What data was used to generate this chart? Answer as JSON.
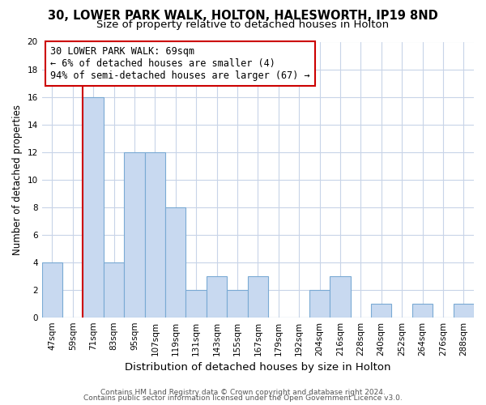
{
  "title": "30, LOWER PARK WALK, HOLTON, HALESWORTH, IP19 8ND",
  "subtitle": "Size of property relative to detached houses in Holton",
  "xlabel": "Distribution of detached houses by size in Holton",
  "ylabel": "Number of detached properties",
  "bar_labels": [
    "47sqm",
    "59sqm",
    "71sqm",
    "83sqm",
    "95sqm",
    "107sqm",
    "119sqm",
    "131sqm",
    "143sqm",
    "155sqm",
    "167sqm",
    "179sqm",
    "192sqm",
    "204sqm",
    "216sqm",
    "228sqm",
    "240sqm",
    "252sqm",
    "264sqm",
    "276sqm",
    "288sqm"
  ],
  "bar_values": [
    4,
    0,
    16,
    4,
    12,
    12,
    8,
    2,
    3,
    2,
    3,
    0,
    0,
    2,
    3,
    0,
    1,
    0,
    1,
    0,
    1
  ],
  "bar_color": "#c8d9f0",
  "bar_edge_color": "#7aaad4",
  "property_line_color": "#cc0000",
  "annotation_line1": "30 LOWER PARK WALK: 69sqm",
  "annotation_line2": "← 6% of detached houses are smaller (4)",
  "annotation_line3": "94% of semi-detached houses are larger (67) →",
  "annotation_box_color": "#ffffff",
  "annotation_box_edge_color": "#cc0000",
  "ylim": [
    0,
    20
  ],
  "yticks": [
    0,
    2,
    4,
    6,
    8,
    10,
    12,
    14,
    16,
    18,
    20
  ],
  "footer_line1": "Contains HM Land Registry data © Crown copyright and database right 2024.",
  "footer_line2": "Contains public sector information licensed under the Open Government Licence v3.0.",
  "background_color": "#ffffff",
  "grid_color": "#c8d4e8",
  "title_fontsize": 10.5,
  "subtitle_fontsize": 9.5,
  "xlabel_fontsize": 9.5,
  "ylabel_fontsize": 8.5,
  "tick_fontsize": 7.5,
  "footer_fontsize": 6.5,
  "annotation_fontsize": 8.5
}
